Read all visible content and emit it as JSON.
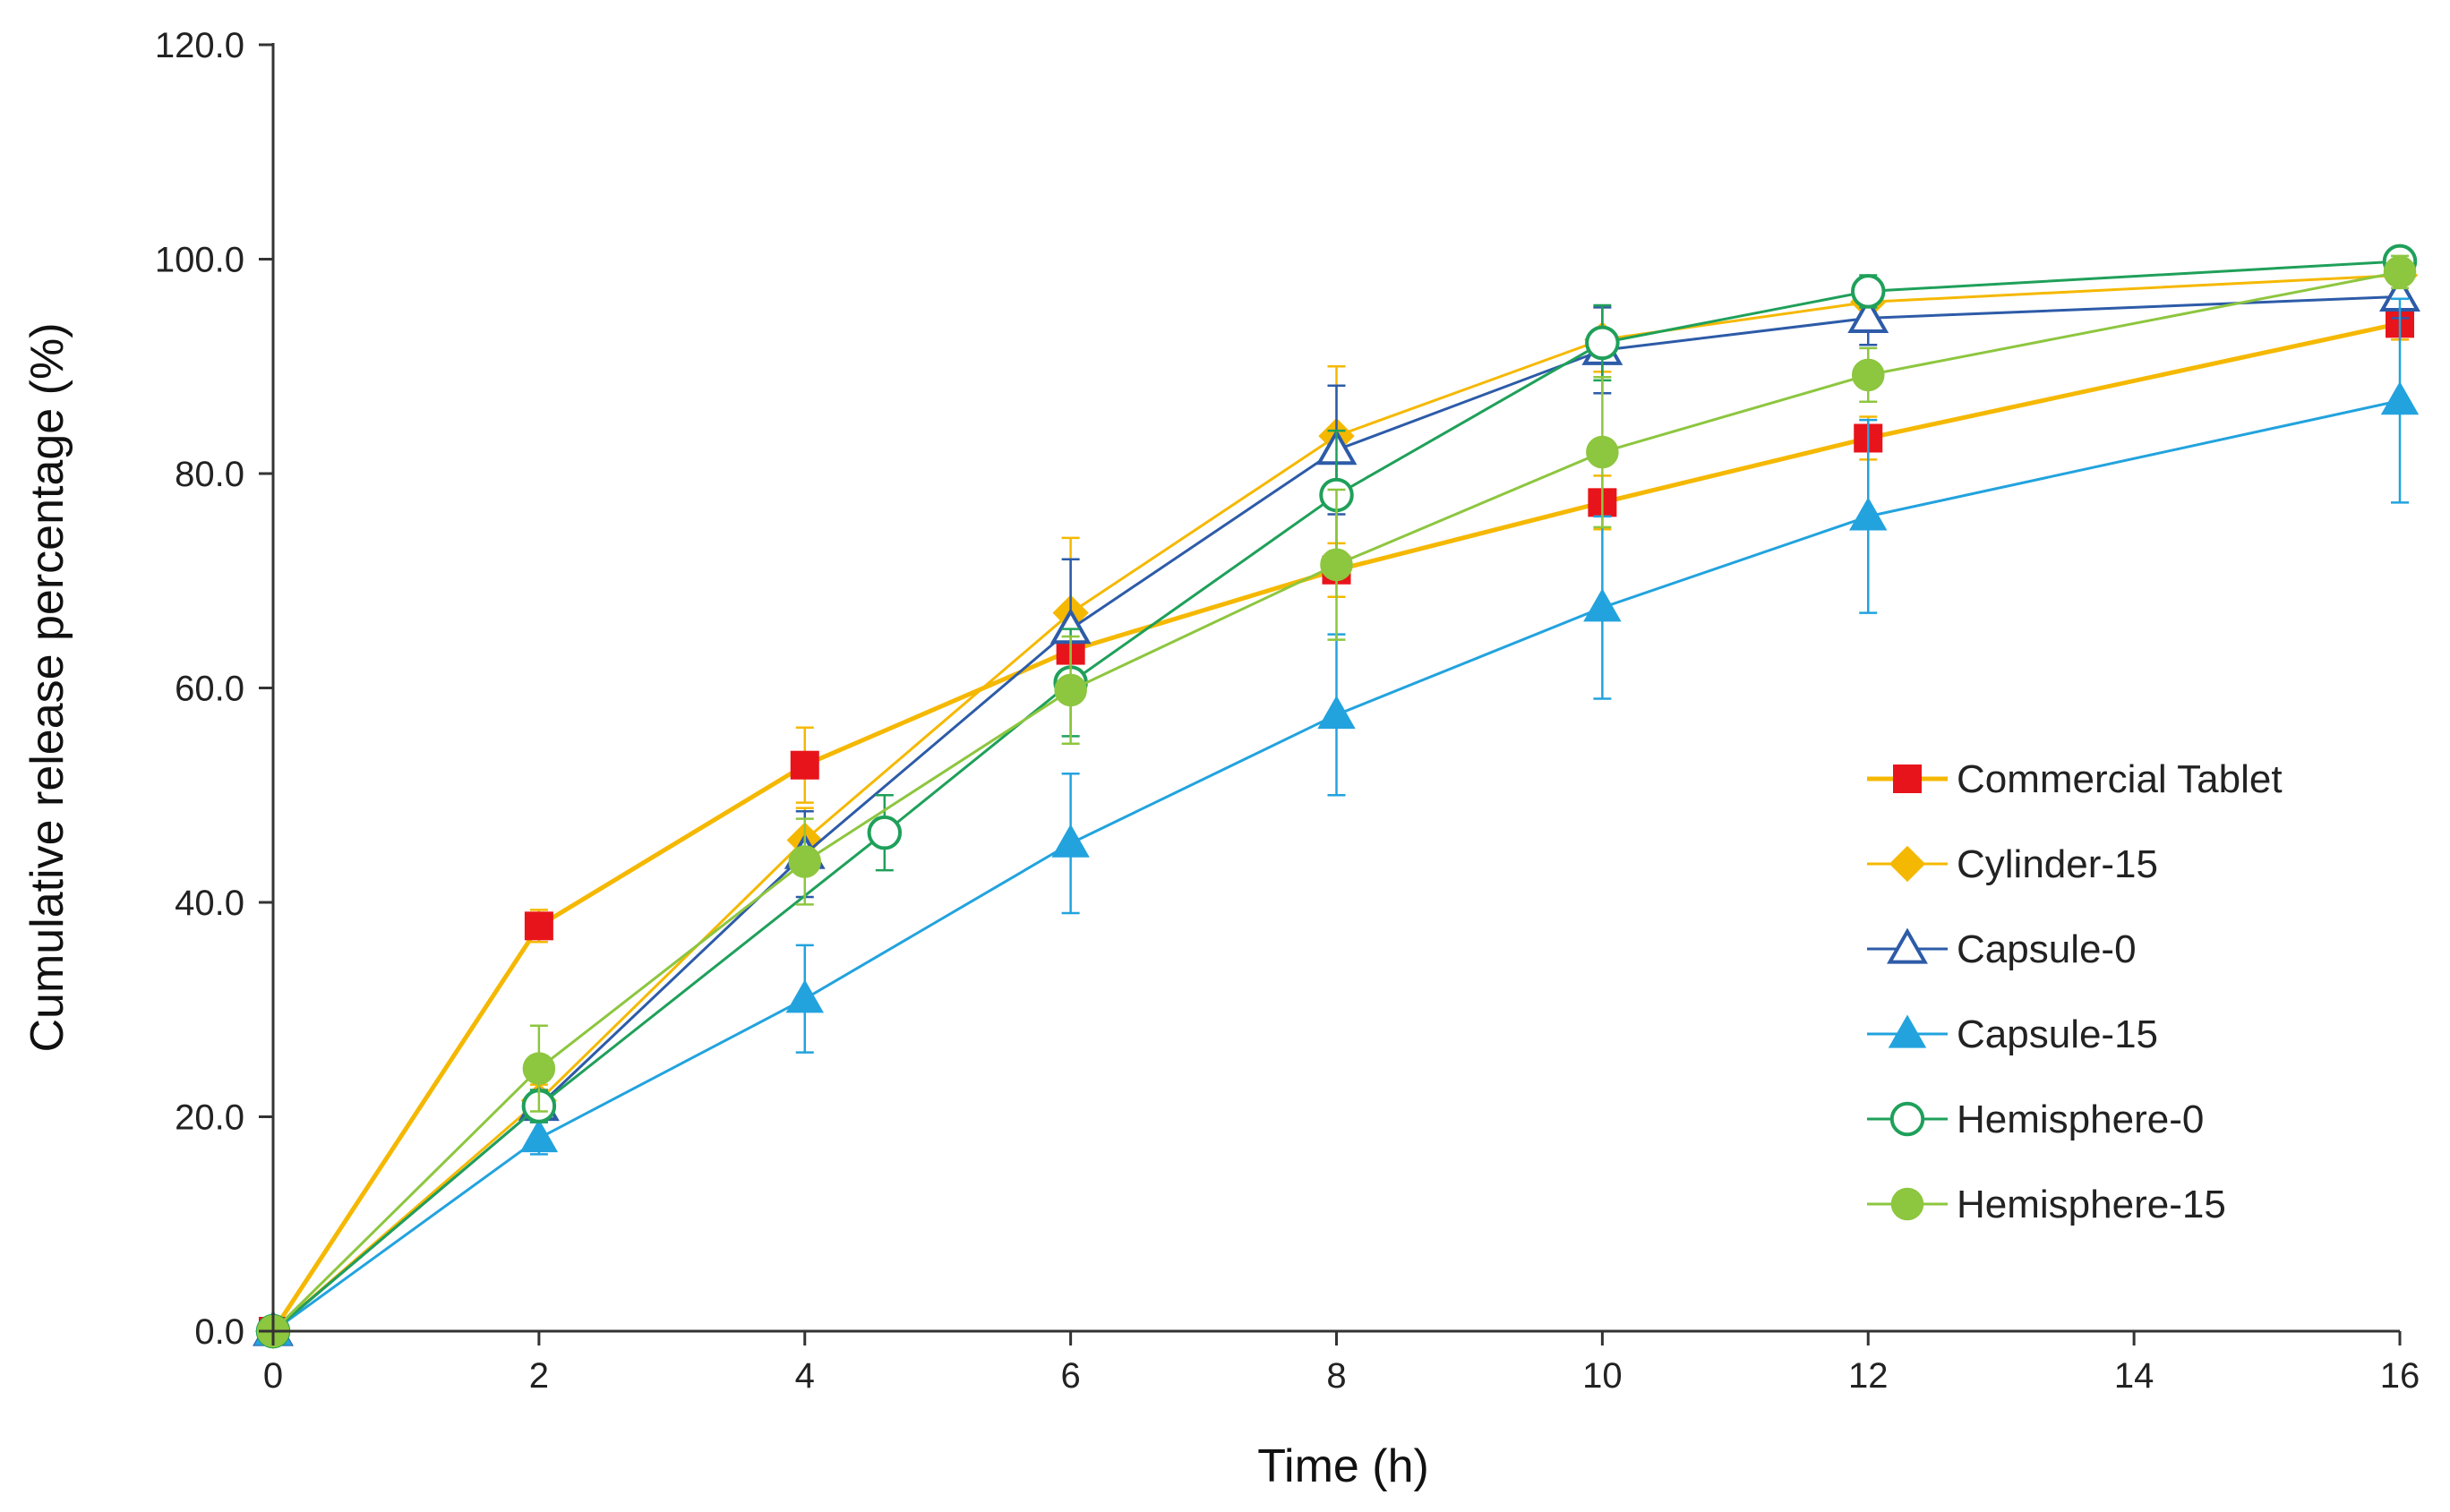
{
  "chart_data": {
    "type": "line",
    "title": "",
    "xlabel": "Time (h)",
    "ylabel": "Cumulative release percentage (%)",
    "xlim": [
      0,
      16
    ],
    "ylim": [
      0,
      120
    ],
    "x_ticks": [
      0,
      2,
      4,
      6,
      8,
      10,
      12,
      14,
      16
    ],
    "y_ticks": [
      0,
      20,
      40,
      60,
      80,
      100,
      120
    ],
    "x_tick_labels": [
      "0",
      "2",
      "4",
      "6",
      "8",
      "10",
      "12",
      "14",
      "16"
    ],
    "y_tick_labels": [
      "0.0",
      "20.0",
      "40.0",
      "60.0",
      "80.0",
      "100.0",
      "120.0"
    ],
    "grid": false,
    "legend_position": "right",
    "series": [
      {
        "name": "Commercial Tablet",
        "line_color": "#F5B800",
        "marker_color": "#E8141B",
        "marker": "square",
        "filled": true,
        "x": [
          0,
          2,
          4,
          6,
          8,
          10,
          12,
          16
        ],
        "values": [
          0,
          37.8,
          52.8,
          63.5,
          71.0,
          77.3,
          83.3,
          94.0
        ],
        "errors": [
          0,
          1.5,
          3.5,
          2.5,
          2.5,
          2.5,
          2.0,
          1.5
        ]
      },
      {
        "name": "Cylinder-15",
        "line_color": "#F5B800",
        "marker_color": "#F5B800",
        "marker": "diamond",
        "filled": true,
        "x": [
          0,
          2,
          4,
          6,
          8,
          10,
          12,
          16
        ],
        "values": [
          0,
          21.5,
          45.8,
          67.0,
          83.5,
          92.5,
          96.0,
          98.5
        ],
        "errors": [
          0,
          1.5,
          3.0,
          7.0,
          6.5,
          3.0,
          2.0,
          1.5
        ]
      },
      {
        "name": "Capsule-0",
        "line_color": "#2D5BA8",
        "marker_color": "#2D5BA8",
        "marker": "triangle",
        "filled": false,
        "x": [
          0,
          2,
          4,
          6,
          8,
          10,
          12,
          16
        ],
        "values": [
          0,
          21.0,
          44.5,
          65.5,
          82.2,
          91.5,
          94.5,
          96.5
        ],
        "errors": [
          0,
          1.5,
          4.0,
          6.5,
          6.0,
          4.0,
          2.5,
          2.0
        ]
      },
      {
        "name": "Capsule-15",
        "line_color": "#22A3DE",
        "marker_color": "#22A3DE",
        "marker": "triangle",
        "filled": true,
        "x": [
          0,
          2,
          4,
          6,
          8,
          10,
          12,
          16
        ],
        "values": [
          0,
          18.0,
          31.0,
          45.5,
          57.5,
          67.5,
          76.0,
          86.8
        ],
        "errors": [
          0,
          1.5,
          5.0,
          6.5,
          7.5,
          8.5,
          9.0,
          9.5
        ]
      },
      {
        "name": "Hemisphere-0",
        "line_color": "#1FA05A",
        "marker_color": "#1FA05A",
        "marker": "circle",
        "filled": false,
        "x": [
          0,
          2,
          4.6,
          6,
          8,
          10,
          12,
          16
        ],
        "values": [
          0,
          21.0,
          46.5,
          60.5,
          78.0,
          92.2,
          97.0,
          99.8
        ],
        "errors": [
          0,
          1.5,
          3.5,
          5.0,
          6.0,
          3.5,
          1.5,
          1.0
        ]
      },
      {
        "name": "Hemisphere-15",
        "line_color": "#8DC63F",
        "marker_color": "#8DC63F",
        "marker": "circle",
        "filled": true,
        "x": [
          0,
          2,
          4,
          6,
          8,
          10,
          12,
          16
        ],
        "values": [
          0,
          24.5,
          43.8,
          59.8,
          71.5,
          82.0,
          89.2,
          98.8
        ],
        "errors": [
          0,
          4.0,
          4.0,
          5.0,
          7.0,
          7.0,
          2.5,
          1.5
        ]
      }
    ]
  }
}
